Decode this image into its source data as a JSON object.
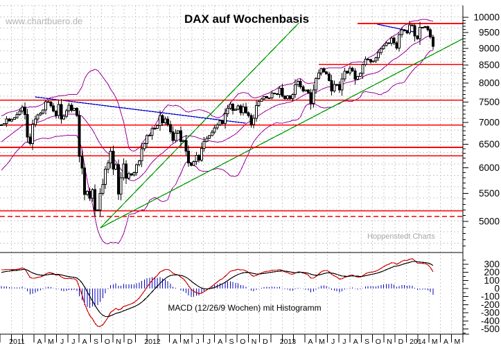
{
  "title": "DAX auf Wochenbasis",
  "watermark": "www.chartbuero.de",
  "credit": "Hoppenstedt Charts",
  "macd_label": "MACD (12/26/9 Wochen) mit Histogramm",
  "colors": {
    "candle_up": "#ffffff",
    "candle_down": "#000000",
    "candle_border": "#000000",
    "bollinger": "#990099",
    "trend_green": "#009900",
    "trend_blue": "#0000cc",
    "level_red": "#ff0000",
    "macd_line": "#cc0000",
    "macd_signal": "#000000",
    "macd_histogram": "#0000bb",
    "grid": "#c9c9c9",
    "axis": "#000000"
  },
  "chart_data": {
    "type": "candlestick+macd",
    "scale": "log",
    "title": "DAX auf Wochenbasis",
    "price_axis_ticks": [
      10000,
      9500,
      9000,
      8500,
      8000,
      7500,
      7000,
      6500,
      6000,
      5500,
      5000
    ],
    "macd_axis_ticks": [
      300,
      200,
      100,
      0,
      -100,
      -200,
      -300,
      -400,
      -500
    ],
    "macd_params": {
      "fast": 12,
      "slow": 26,
      "signal": 9
    },
    "bollinger_params": {
      "period": 20,
      "stddev": 2
    },
    "x_axis_labels": [
      {
        "label": "2011",
        "start": 0,
        "span": 3
      },
      {
        "label": "A",
        "start": 3,
        "span": 1
      },
      {
        "label": "M",
        "start": 4,
        "span": 1
      },
      {
        "label": "J",
        "start": 5,
        "span": 1
      },
      {
        "label": "J",
        "start": 6,
        "span": 1
      },
      {
        "label": "A",
        "start": 7,
        "span": 1
      },
      {
        "label": "S",
        "start": 8,
        "span": 1
      },
      {
        "label": "O",
        "start": 9,
        "span": 1
      },
      {
        "label": "N",
        "start": 10,
        "span": 1
      },
      {
        "label": "D",
        "start": 11,
        "span": 1
      },
      {
        "label": "2012",
        "start": 12,
        "span": 3
      },
      {
        "label": "A",
        "start": 15,
        "span": 1
      },
      {
        "label": "M",
        "start": 16,
        "span": 1
      },
      {
        "label": "J",
        "start": 17,
        "span": 1
      },
      {
        "label": "J",
        "start": 18,
        "span": 1
      },
      {
        "label": "A",
        "start": 19,
        "span": 1
      },
      {
        "label": "S",
        "start": 20,
        "span": 1
      },
      {
        "label": "O",
        "start": 21,
        "span": 1
      },
      {
        "label": "N",
        "start": 22,
        "span": 1
      },
      {
        "label": "D",
        "start": 23,
        "span": 1
      },
      {
        "label": "2013",
        "start": 24,
        "span": 3
      },
      {
        "label": "A",
        "start": 27,
        "span": 1
      },
      {
        "label": "M",
        "start": 28,
        "span": 1
      },
      {
        "label": "J",
        "start": 29,
        "span": 1
      },
      {
        "label": "J",
        "start": 30,
        "span": 1
      },
      {
        "label": "A",
        "start": 31,
        "span": 1
      },
      {
        "label": "S",
        "start": 32,
        "span": 1
      },
      {
        "label": "O",
        "start": 33,
        "span": 1
      },
      {
        "label": "N",
        "start": 34,
        "span": 1
      },
      {
        "label": "D",
        "start": 35,
        "span": 1
      },
      {
        "label": "2014",
        "start": 36,
        "span": 2
      },
      {
        "label": "M",
        "start": 38,
        "span": 1
      },
      {
        "label": "A",
        "start": 39,
        "span": 1
      },
      {
        "label": "M",
        "start": 40,
        "span": 1
      }
    ],
    "months_total": 41,
    "warmup_closes": [
      5980,
      6050,
      6120,
      6180,
      6140,
      6220,
      6280,
      6350,
      6420,
      6480,
      6550,
      6620,
      6680,
      6740,
      6790,
      6830,
      6860,
      6890,
      6920,
      6935
    ],
    "weekly_closes": [
      6940,
      6970,
      7080,
      7030,
      7070,
      7110,
      7190,
      7270,
      7370,
      7190,
      6660,
      6510,
      6950,
      7080,
      7180,
      7220,
      7300,
      7510,
      7500,
      7400,
      7270,
      7160,
      7440,
      7080,
      7150,
      7280,
      7420,
      7290,
      7340,
      7160,
      6240,
      5990,
      5480,
      5540,
      5410,
      5570,
      5190,
      5200,
      5500,
      5670,
      5970,
      6100,
      6350,
      5970,
      6060,
      5490,
      5800,
      6080,
      5790,
      5880,
      5850,
      5900,
      6060,
      6140,
      6400,
      6510,
      6690,
      6700,
      6850,
      6860,
      6920,
      7160,
      6990,
      7080,
      6950,
      6780,
      6580,
      6750,
      6800,
      6560,
      6580,
      6350,
      6100,
      6050,
      6130,
      6260,
      6160,
      6410,
      6560,
      6630,
      6690,
      6770,
      6870,
      6940,
      7040,
      6970,
      7210,
      7340,
      7450,
      7290,
      7320,
      7400,
      7230,
      7380,
      7230,
      7160,
      6950,
      7100,
      7410,
      7520,
      7580,
      7640,
      7610,
      7610,
      7730,
      7715,
      7700,
      7860,
      7650,
      7590,
      7660,
      7590,
      7700,
      7950,
      8050,
      7900,
      7790,
      7810,
      7740,
      7460,
      7810,
      8120,
      8280,
      8400,
      8310,
      8250,
      8070,
      7790,
      7960,
      7960,
      7810,
      8110,
      8330,
      8280,
      8410,
      8340,
      8100,
      8180,
      8270,
      8510,
      8680,
      8660,
      8590,
      8620,
      8720,
      8870,
      8990,
      9080,
      9170,
      9160,
      9320,
      9170,
      9010,
      9430,
      9590,
      9550,
      9480,
      9740,
      9720,
      9390,
      9300,
      9660,
      9660,
      9690,
      9590,
      9350,
      9060
    ],
    "price_levels": [
      {
        "price": 9790,
        "from_week": 137,
        "to_week": 178,
        "dashed": false
      },
      {
        "price": 8520,
        "from_week": 122,
        "to_week": 178,
        "dashed": false
      },
      {
        "price": 7545,
        "from_week": -1,
        "to_week": 178,
        "dashed": false
      },
      {
        "price": 6935,
        "from_week": -1,
        "to_week": 178,
        "dashed": false
      },
      {
        "price": 6430,
        "from_week": -1,
        "to_week": 178,
        "dashed": false
      },
      {
        "price": 6250,
        "from_week": -1,
        "to_week": 178,
        "dashed": false
      },
      {
        "price": 5185,
        "from_week": -1,
        "to_week": 178,
        "dashed": false
      },
      {
        "price": 5085,
        "from_week": -1,
        "to_week": 178,
        "dashed": true
      }
    ],
    "trendlines": [
      {
        "name": "green-support-steep",
        "color": "#009900",
        "from": {
          "week": 38,
          "price": 4890
        },
        "to": {
          "week": 114.5,
          "price": 9820
        }
      },
      {
        "name": "green-support-long",
        "color": "#009900",
        "from": {
          "week": 38,
          "price": 4890
        },
        "to": {
          "week": 177.5,
          "price": 9300
        }
      },
      {
        "name": "blue-resistance-2011",
        "color": "#0000cc",
        "from": {
          "week": 13,
          "price": 7630
        },
        "to": {
          "week": 94,
          "price": 6980
        }
      },
      {
        "name": "blue-resistance-2014",
        "color": "#0000cc",
        "from": {
          "week": 144.5,
          "price": 9770
        },
        "to": {
          "week": 159.5,
          "price": 9500
        }
      }
    ]
  }
}
